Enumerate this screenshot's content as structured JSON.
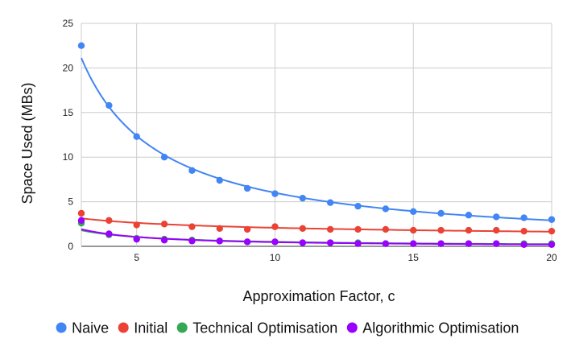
{
  "chart_data": {
    "type": "scatter",
    "xlabel": "Approximation Factor, c",
    "ylabel": "Space Used (MBs)",
    "xlim": [
      3,
      20
    ],
    "ylim": [
      0,
      25
    ],
    "x_ticks": [
      "5",
      "10",
      "15",
      "20"
    ],
    "y_ticks": [
      "0",
      "5",
      "10",
      "15",
      "20",
      "25"
    ],
    "grid": true,
    "legend_position": "bottom",
    "trendlines": true,
    "x": [
      3,
      4,
      5,
      6,
      7,
      8,
      9,
      10,
      11,
      12,
      13,
      14,
      15,
      16,
      17,
      18,
      19,
      20
    ],
    "series": [
      {
        "name": "Naive",
        "color": "#4285f4",
        "values": [
          22.5,
          15.8,
          12.3,
          10.0,
          8.5,
          7.4,
          6.5,
          5.9,
          5.4,
          4.9,
          4.5,
          4.2,
          3.9,
          3.7,
          3.5,
          3.3,
          3.2,
          3.0
        ]
      },
      {
        "name": "Initial",
        "color": "#ea4335",
        "values": [
          3.7,
          2.9,
          2.4,
          2.5,
          2.2,
          2.0,
          1.9,
          2.2,
          2.0,
          1.9,
          1.9,
          1.9,
          1.8,
          1.8,
          1.8,
          1.8,
          1.7,
          1.7
        ]
      },
      {
        "name": "Technical Optimisation",
        "color": "#34a853",
        "values": [
          2.6,
          1.3,
          0.9,
          0.8,
          0.7,
          0.6,
          0.5,
          0.5,
          0.4,
          0.4,
          0.4,
          0.3,
          0.3,
          0.3,
          0.3,
          0.3,
          0.3,
          0.3
        ]
      },
      {
        "name": "Algorithmic Optimisation",
        "color": "#9900ff",
        "values": [
          2.9,
          1.4,
          0.8,
          0.7,
          0.6,
          0.6,
          0.5,
          0.5,
          0.4,
          0.4,
          0.3,
          0.3,
          0.3,
          0.3,
          0.3,
          0.3,
          0.2,
          0.2
        ]
      }
    ]
  }
}
